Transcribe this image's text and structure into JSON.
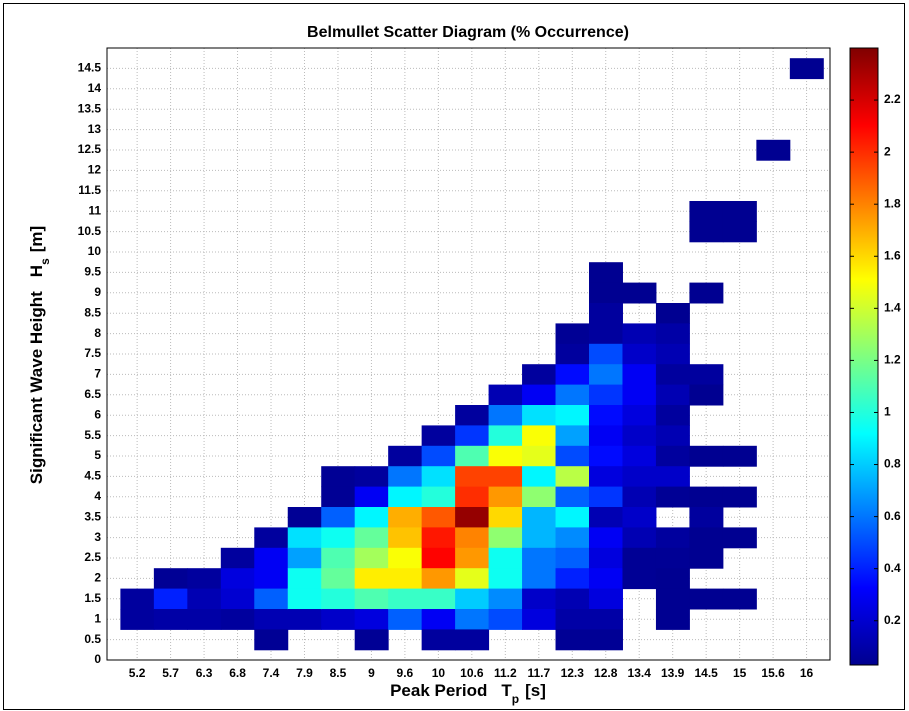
{
  "chart_data": {
    "type": "heatmap",
    "title": "Belmullet Scatter Diagram (% Occurrence)",
    "xlabel": "Peak Period",
    "xlabel_symbol": "T",
    "xlabel_sub": "p",
    "xlabel_unit": "[s]",
    "ylabel": "Significant Wave Height",
    "ylabel_symbol": "H",
    "ylabel_sub": "s",
    "ylabel_unit": "[m]",
    "colormap": "jet",
    "clim": [
      0.03,
      2.4
    ],
    "cticks": [
      0.2,
      0.4,
      0.6,
      0.8,
      1,
      1.2,
      1.4,
      1.6,
      1.8,
      2,
      2.2
    ],
    "ylim": [
      0,
      15
    ],
    "yticks": [
      0,
      0.5,
      1,
      1.5,
      2,
      2.5,
      3,
      3.5,
      4,
      4.5,
      5,
      5.5,
      6,
      6.5,
      7,
      7.5,
      8,
      8.5,
      9,
      9.5,
      10,
      10.5,
      11,
      11.5,
      12,
      12.5,
      13,
      13.5,
      14,
      14.5
    ],
    "grid": true,
    "columns": [
      {
        "period": "5.2",
        "hs": [
          1.5,
          1
        ],
        "values": [
          0.1,
          0.1
        ]
      },
      {
        "period": "5.7",
        "hs": [
          2,
          1.5,
          1
        ],
        "values": [
          0.08,
          0.4,
          0.12
        ]
      },
      {
        "period": "6.3",
        "hs": [
          2,
          1.5,
          1
        ],
        "values": [
          0.1,
          0.15,
          0.12
        ]
      },
      {
        "period": "6.8",
        "hs": [
          2.5,
          2,
          1.5,
          1
        ],
        "values": [
          0.1,
          0.25,
          0.22,
          0.1
        ]
      },
      {
        "period": "7.4",
        "hs": [
          3,
          2.5,
          2,
          1.5,
          1,
          0.5
        ],
        "values": [
          0.1,
          0.3,
          0.3,
          0.55,
          0.15,
          0.08
        ]
      },
      {
        "period": "7.9",
        "hs": [
          3.5,
          3,
          2.5,
          2,
          1.5,
          1
        ],
        "values": [
          0.08,
          0.85,
          0.7,
          0.95,
          0.95,
          0.15
        ]
      },
      {
        "period": "8.5",
        "hs": [
          4.5,
          4,
          3.5,
          3,
          2.5,
          2,
          1.5,
          1
        ],
        "values": [
          0.08,
          0.08,
          0.55,
          0.95,
          1.1,
          1.15,
          1.0,
          0.2
        ]
      },
      {
        "period": "9",
        "hs": [
          4.5,
          4,
          3.5,
          3,
          2.5,
          2,
          1.5,
          1,
          0.5
        ],
        "values": [
          0.1,
          0.3,
          0.9,
          1.15,
          1.3,
          1.55,
          1.1,
          0.25,
          0.08
        ]
      },
      {
        "period": "9.6",
        "hs": [
          5,
          4.5,
          4,
          3.5,
          3,
          2.5,
          2,
          1.5,
          1
        ],
        "values": [
          0.1,
          0.6,
          0.9,
          1.7,
          1.65,
          1.5,
          1.55,
          1.05,
          0.55
        ]
      },
      {
        "period": "10",
        "hs": [
          5.5,
          5,
          4.5,
          4,
          3.5,
          3,
          2.5,
          2,
          1.5,
          1,
          0.5
        ],
        "values": [
          0.1,
          0.5,
          0.85,
          1.0,
          1.9,
          2.05,
          2.1,
          1.75,
          1.05,
          0.3,
          0.1
        ]
      },
      {
        "period": "10.6",
        "hs": [
          6,
          5.5,
          5,
          4.5,
          4,
          3.5,
          3,
          2.5,
          2,
          1.5,
          1,
          0.5
        ],
        "values": [
          0.1,
          0.45,
          1.1,
          1.95,
          2.0,
          2.35,
          1.8,
          1.75,
          1.45,
          0.8,
          0.6,
          0.1
        ]
      },
      {
        "period": "11.2",
        "hs": [
          6.5,
          6,
          5.5,
          5,
          4.5,
          4,
          3.5,
          3,
          2.5,
          2,
          1.5,
          1
        ],
        "values": [
          0.15,
          0.6,
          1.0,
          1.5,
          1.95,
          1.75,
          1.6,
          1.25,
          0.95,
          0.95,
          0.65,
          0.5
        ]
      },
      {
        "period": "11.7",
        "hs": [
          7,
          6.5,
          6,
          5.5,
          5,
          4.5,
          4,
          3.5,
          3,
          2.5,
          2,
          1.5,
          1
        ],
        "values": [
          0.1,
          0.3,
          0.85,
          1.5,
          1.45,
          0.9,
          1.25,
          0.75,
          0.75,
          0.6,
          0.6,
          0.2,
          0.25
        ]
      },
      {
        "period": "12.3",
        "hs": [
          8,
          7.5,
          7,
          6.5,
          6,
          5.5,
          5,
          4.5,
          4,
          3.5,
          3,
          2.5,
          2,
          1.5,
          1,
          0.5
        ],
        "values": [
          0.08,
          0.1,
          0.35,
          0.6,
          0.9,
          0.7,
          0.5,
          1.35,
          0.55,
          0.9,
          0.65,
          0.55,
          0.4,
          0.15,
          0.12,
          0.08
        ]
      },
      {
        "period": "12.8",
        "hs": [
          9.5,
          9,
          8.5,
          8,
          7.5,
          7,
          6.5,
          6,
          5.5,
          5,
          4.5,
          4,
          3.5,
          3,
          2.5,
          2,
          1.5,
          1,
          0.5
        ],
        "values": [
          0.07,
          0.07,
          0.1,
          0.1,
          0.5,
          0.6,
          0.45,
          0.35,
          0.3,
          0.35,
          0.25,
          0.45,
          0.15,
          0.3,
          0.25,
          0.3,
          0.25,
          0.12,
          0.08
        ]
      },
      {
        "period": "13.4",
        "hs": [
          9,
          8,
          7.5,
          7,
          6.5,
          6,
          5.5,
          5,
          4.5,
          4,
          3.5,
          3,
          2.5,
          2
        ],
        "values": [
          0.07,
          0.15,
          0.2,
          0.3,
          0.3,
          0.25,
          0.2,
          0.25,
          0.2,
          0.15,
          0.2,
          0.15,
          0.08,
          0.08
        ]
      },
      {
        "period": "13.9",
        "hs": [
          8.5,
          8,
          7.5,
          7,
          6.5,
          6,
          5.5,
          5,
          4.5,
          4,
          3,
          2.5,
          2,
          1.5,
          1
        ],
        "values": [
          0.07,
          0.12,
          0.15,
          0.1,
          0.15,
          0.1,
          0.15,
          0.1,
          0.2,
          0.08,
          0.1,
          0.08,
          0.07,
          0.07,
          0.07
        ]
      },
      {
        "period": "14.5",
        "hs": [
          11,
          10.5,
          9,
          7,
          6.5,
          5,
          4,
          3.5,
          3,
          2.5,
          1.5
        ],
        "values": [
          0.07,
          0.07,
          0.07,
          0.1,
          0.07,
          0.07,
          0.07,
          0.1,
          0.07,
          0.07,
          0.07
        ]
      },
      {
        "period": "15",
        "hs": [
          11,
          10.5,
          5,
          4,
          3,
          1.5
        ],
        "values": [
          0.07,
          0.07,
          0.07,
          0.07,
          0.07,
          0.07
        ]
      },
      {
        "period": "15.6",
        "hs": [
          12.5
        ],
        "values": [
          0.07
        ]
      },
      {
        "period": "16",
        "hs": [
          14.5
        ],
        "values": [
          0.07
        ]
      }
    ]
  }
}
